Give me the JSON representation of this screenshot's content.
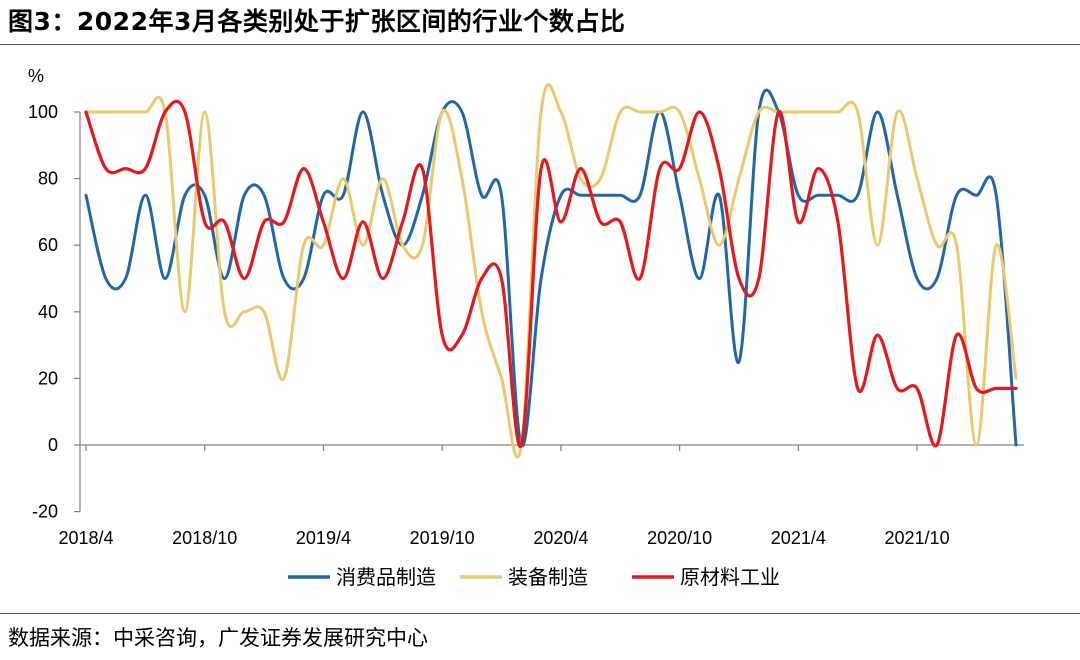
{
  "header": {
    "title": "图3：2022年3月各类别处于扩张区间的行业个数占比"
  },
  "footer": {
    "source": "数据来源：中采咨询，广发证券发展研究中心"
  },
  "colors": {
    "consumer": "#2166A8",
    "equipment": "#E8C96E",
    "raw": "#E31A1C"
  },
  "chart_data": {
    "type": "line",
    "title": "",
    "ylabel": "%",
    "xlabel": "",
    "ylim": [
      -20,
      100
    ],
    "yticks": [
      -20,
      0,
      20,
      40,
      60,
      80,
      100
    ],
    "ytick_labels": [
      "-20",
      "0",
      "20",
      "40",
      "60",
      "80",
      "100"
    ],
    "grid": false,
    "legend": "bottom",
    "x": [
      "2018/4",
      "2018/5",
      "2018/6",
      "2018/7",
      "2018/8",
      "2018/9",
      "2018/10",
      "2018/11",
      "2018/12",
      "2019/1",
      "2019/2",
      "2019/3",
      "2019/4",
      "2019/5",
      "2019/6",
      "2019/7",
      "2019/8",
      "2019/9",
      "2019/10",
      "2019/11",
      "2019/12",
      "2020/1",
      "2020/2",
      "2020/3",
      "2020/4",
      "2020/5",
      "2020/6",
      "2020/7",
      "2020/8",
      "2020/9",
      "2020/10",
      "2020/11",
      "2020/12",
      "2021/1",
      "2021/2",
      "2021/3",
      "2021/4",
      "2021/5",
      "2021/6",
      "2021/7",
      "2021/8",
      "2021/9",
      "2021/10",
      "2021/11",
      "2021/12",
      "2022/1",
      "2022/2",
      "2022/3"
    ],
    "xtick_labels": [
      "2018/4",
      "2018/10",
      "2019/4",
      "2019/10",
      "2020/4",
      "2020/10",
      "2021/4",
      "2021/10"
    ],
    "xtick_index": [
      0,
      6,
      12,
      18,
      24,
      30,
      36,
      42
    ],
    "series": [
      {
        "name": "消费品制造",
        "color": "#2166A8",
        "values": [
          75,
          50,
          50,
          75,
          50,
          75,
          75,
          50,
          75,
          75,
          50,
          50,
          75,
          75,
          100,
          75,
          60,
          75,
          100,
          100,
          75,
          75,
          0,
          50,
          75,
          75,
          75,
          75,
          75,
          100,
          75,
          50,
          75,
          25,
          100,
          100,
          75,
          75,
          75,
          75,
          100,
          75,
          50,
          50,
          75,
          75,
          75,
          0
        ]
      },
      {
        "name": "装备制造",
        "color": "#E8C96E",
        "values": [
          100,
          100,
          100,
          100,
          100,
          40,
          100,
          40,
          40,
          40,
          20,
          60,
          60,
          80,
          60,
          80,
          60,
          60,
          100,
          80,
          40,
          20,
          0,
          100,
          100,
          80,
          80,
          100,
          100,
          100,
          100,
          80,
          60,
          80,
          100,
          100,
          100,
          100,
          100,
          100,
          60,
          100,
          80,
          60,
          60,
          0,
          60,
          20
        ]
      },
      {
        "name": "原材料工业",
        "color": "#E31A1C",
        "values": [
          100,
          83,
          83,
          83,
          100,
          100,
          67,
          67,
          50,
          67,
          67,
          83,
          67,
          50,
          67,
          50,
          67,
          83,
          33,
          33,
          50,
          50,
          0,
          83,
          67,
          83,
          67,
          67,
          50,
          83,
          83,
          100,
          83,
          50,
          50,
          100,
          67,
          83,
          67,
          17,
          33,
          17,
          17,
          0,
          33,
          17,
          17,
          17
        ]
      }
    ],
    "legend_entries": [
      "消费品制造",
      "装备制造",
      "原材料工业"
    ]
  }
}
